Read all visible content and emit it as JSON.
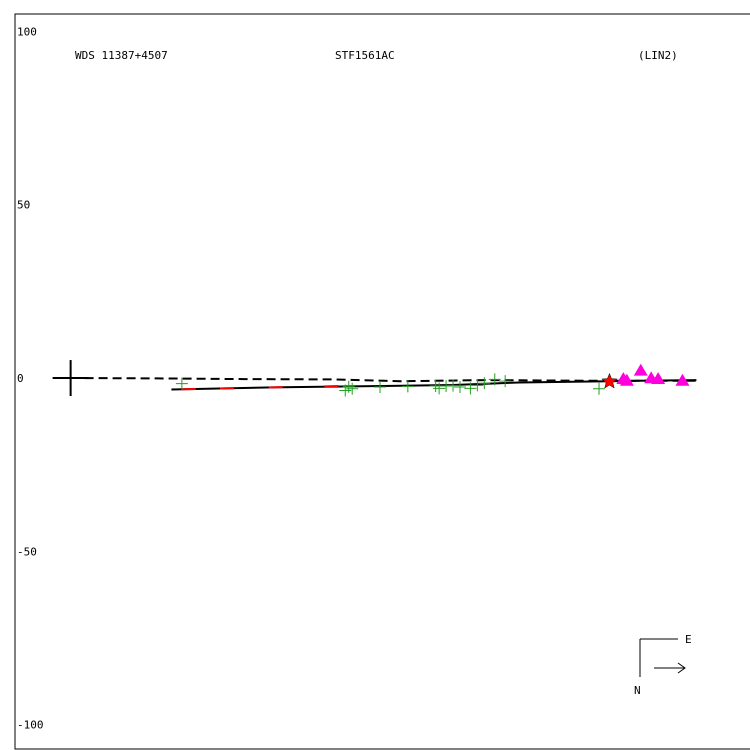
{
  "header": {
    "star_id": "WDS 11387+4507",
    "pair_name": "STF1561AC",
    "fit_code": "(LIN2)"
  },
  "compass": {
    "east_label": "E",
    "north_label": "N"
  },
  "colors": {
    "axes": "#000000",
    "micrometer": "#22a022",
    "first_obs": "#ff0000",
    "speckle": "#ff00dd",
    "fit_line": "#000000",
    "residual": "#ff0000"
  },
  "chart_data": {
    "type": "scatter",
    "title": "",
    "xlabel": "",
    "ylabel": "",
    "xlim": [
      -16,
      196
    ],
    "ylim": [
      -107,
      105
    ],
    "grid": false,
    "yticks": [
      {
        "value": 100,
        "label": "100"
      },
      {
        "value": 50,
        "label": "50"
      },
      {
        "value": 0,
        "label": "0"
      },
      {
        "value": -50,
        "label": "-50"
      },
      {
        "value": -100,
        "label": "-100"
      }
    ],
    "primary": {
      "x": 0,
      "y": 0
    },
    "fit_solid": [
      [
        29,
        -3.3
      ],
      [
        58,
        -2.7
      ],
      [
        90,
        -2.3
      ],
      [
        110,
        -2.0
      ],
      [
        129,
        -1.3
      ],
      [
        163,
        -0.8
      ],
      [
        180,
        -0.6
      ]
    ],
    "fit_dashed": [
      [
        0,
        0
      ],
      [
        25,
        -0.1
      ],
      [
        50,
        -0.3
      ],
      [
        75,
        -0.4
      ],
      [
        95,
        -0.9
      ],
      [
        120,
        -0.6
      ],
      [
        150,
        -0.8
      ],
      [
        175,
        -0.8
      ],
      [
        180,
        -0.8
      ]
    ],
    "series": [
      {
        "marker": "plus",
        "points": [
          [
            32,
            -1.6
          ],
          [
            80,
            -2.5
          ],
          [
            81,
            -3.1
          ],
          [
            79,
            -3.6
          ],
          [
            89,
            -2.6
          ],
          [
            97,
            -2.4
          ],
          [
            105,
            -2.3
          ],
          [
            106,
            -3.0
          ],
          [
            108,
            -2.3
          ],
          [
            110,
            -2.2
          ],
          [
            112,
            -2.6
          ],
          [
            115,
            -3.0
          ],
          [
            117,
            -2.1
          ],
          [
            119,
            -1.5
          ],
          [
            122,
            -0.4
          ],
          [
            125,
            -0.9
          ],
          [
            152,
            -3.1
          ]
        ]
      },
      {
        "marker": "star",
        "points": [
          [
            155,
            -1.0
          ]
        ]
      },
      {
        "marker": "triangle",
        "points": [
          [
            159,
            -0.3
          ],
          [
            160,
            -0.8
          ],
          [
            164,
            2.1
          ],
          [
            167,
            -0.1
          ],
          [
            169,
            -0.3
          ],
          [
            176,
            -0.8
          ]
        ]
      }
    ]
  }
}
